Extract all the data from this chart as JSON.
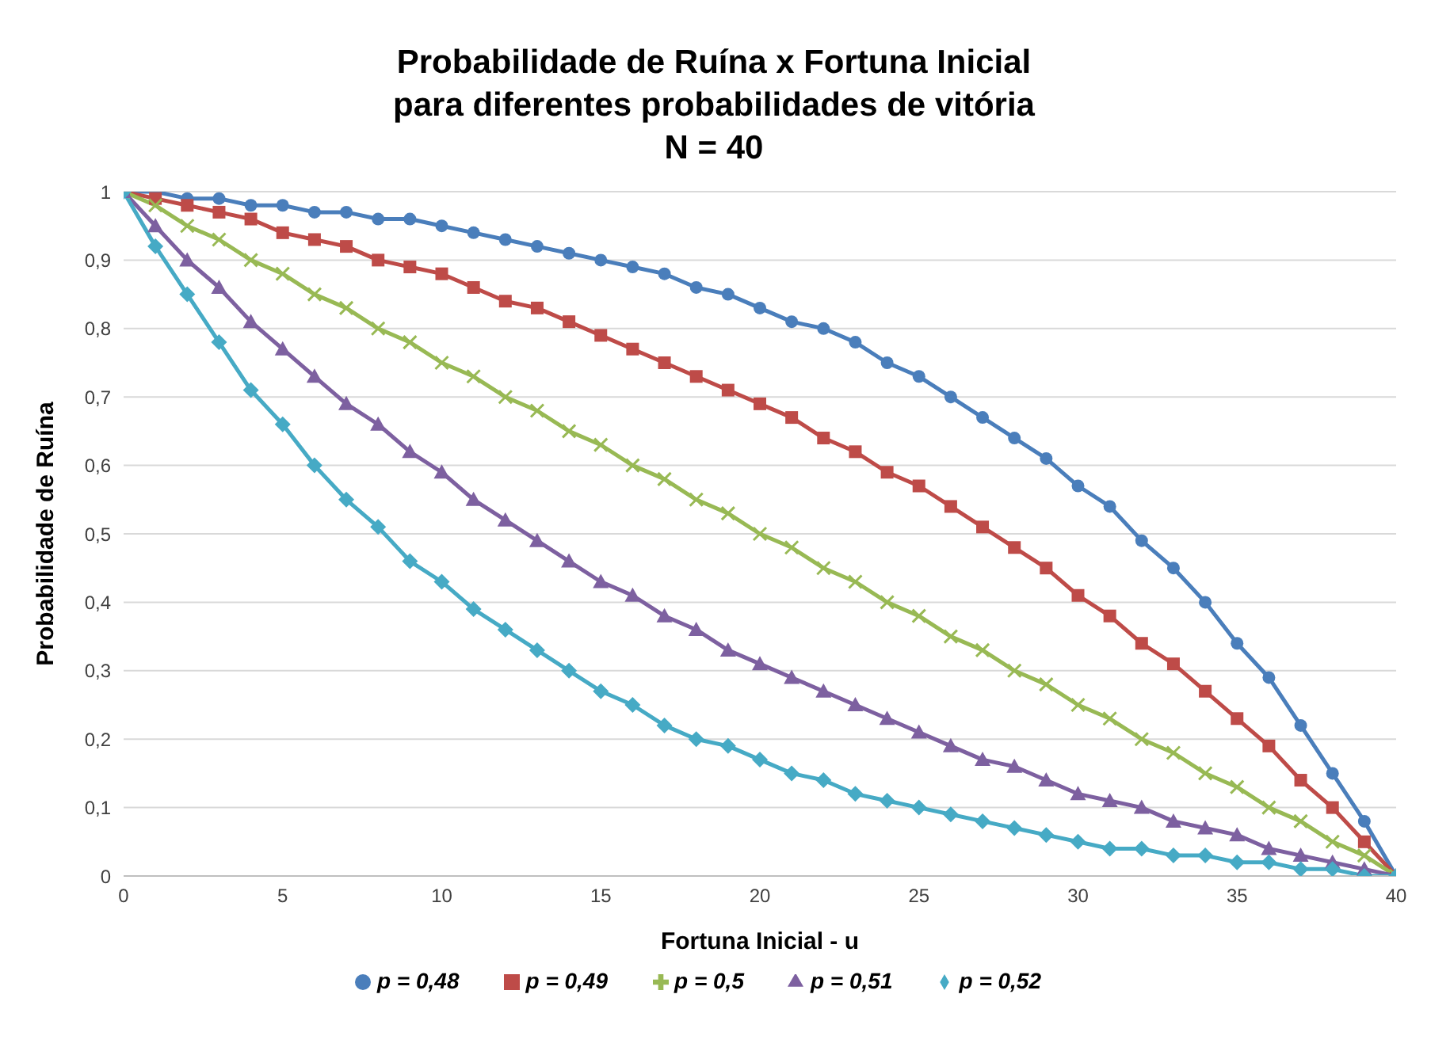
{
  "chart_data": {
    "type": "line",
    "title": "Probabilidade de Ruína x Fortuna Inicial\npara diferentes probabilidades de vitória\nN = 40",
    "xlabel": "Fortuna Inicial - u",
    "ylabel": "Probabilidade de Ruína",
    "x": [
      0,
      1,
      2,
      3,
      4,
      5,
      6,
      7,
      8,
      9,
      10,
      11,
      12,
      13,
      14,
      15,
      16,
      17,
      18,
      19,
      20,
      21,
      22,
      23,
      24,
      25,
      26,
      27,
      28,
      29,
      30,
      31,
      32,
      33,
      34,
      35,
      36,
      37,
      38,
      39,
      40
    ],
    "series": [
      {
        "name": "p = 0,48",
        "color": "#4a7ebb",
        "marker": "circle",
        "values": [
          1,
          1,
          0.99,
          0.99,
          0.98,
          0.98,
          0.97,
          0.97,
          0.96,
          0.96,
          0.95,
          0.94,
          0.93,
          0.92,
          0.91,
          0.9,
          0.89,
          0.88,
          0.86,
          0.85,
          0.83,
          0.81,
          0.8,
          0.78,
          0.75,
          0.73,
          0.7,
          0.67,
          0.64,
          0.61,
          0.57,
          0.54,
          0.49,
          0.45,
          0.4,
          0.34,
          0.29,
          0.22,
          0.15,
          0.08,
          0
        ]
      },
      {
        "name": "p = 0,49",
        "color": "#be4b48",
        "marker": "square",
        "values": [
          1,
          0.99,
          0.98,
          0.97,
          0.96,
          0.94,
          0.93,
          0.92,
          0.9,
          0.89,
          0.88,
          0.86,
          0.84,
          0.83,
          0.81,
          0.79,
          0.77,
          0.75,
          0.73,
          0.71,
          0.69,
          0.67,
          0.64,
          0.62,
          0.59,
          0.57,
          0.54,
          0.51,
          0.48,
          0.45,
          0.41,
          0.38,
          0.34,
          0.31,
          0.27,
          0.23,
          0.19,
          0.14,
          0.1,
          0.05,
          0
        ]
      },
      {
        "name": "p = 0,5",
        "color": "#98b954",
        "marker": "cross",
        "values": [
          1,
          0.98,
          0.95,
          0.93,
          0.9,
          0.88,
          0.85,
          0.83,
          0.8,
          0.78,
          0.75,
          0.73,
          0.7,
          0.68,
          0.65,
          0.63,
          0.6,
          0.58,
          0.55,
          0.53,
          0.5,
          0.48,
          0.45,
          0.43,
          0.4,
          0.38,
          0.35,
          0.33,
          0.3,
          0.28,
          0.25,
          0.23,
          0.2,
          0.18,
          0.15,
          0.13,
          0.1,
          0.08,
          0.05,
          0.03,
          0
        ]
      },
      {
        "name": "p = 0,51",
        "color": "#7d60a0",
        "marker": "triangle",
        "values": [
          1,
          0.95,
          0.9,
          0.86,
          0.81,
          0.77,
          0.73,
          0.69,
          0.66,
          0.62,
          0.59,
          0.55,
          0.52,
          0.49,
          0.46,
          0.43,
          0.41,
          0.38,
          0.36,
          0.33,
          0.31,
          0.29,
          0.27,
          0.25,
          0.23,
          0.21,
          0.19,
          0.17,
          0.16,
          0.14,
          0.12,
          0.11,
          0.1,
          0.08,
          0.07,
          0.06,
          0.04,
          0.03,
          0.02,
          0.01,
          0
        ]
      },
      {
        "name": "p = 0,52",
        "color": "#46aac5",
        "marker": "diamond",
        "values": [
          1,
          0.92,
          0.85,
          0.78,
          0.71,
          0.66,
          0.6,
          0.55,
          0.51,
          0.46,
          0.43,
          0.39,
          0.36,
          0.33,
          0.3,
          0.27,
          0.25,
          0.22,
          0.2,
          0.19,
          0.17,
          0.15,
          0.14,
          0.12,
          0.11,
          0.1,
          0.09,
          0.08,
          0.07,
          0.06,
          0.05,
          0.04,
          0.04,
          0.03,
          0.03,
          0.02,
          0.02,
          0.01,
          0.01,
          0,
          0
        ]
      }
    ],
    "xlim": [
      0,
      40
    ],
    "xticks": [
      0,
      5,
      10,
      15,
      20,
      25,
      30,
      35,
      40
    ],
    "ylim": [
      0,
      1
    ],
    "yticks": [
      0,
      {
        "value": 0.1,
        "label": "0,1"
      },
      {
        "value": 0.2,
        "label": "0,2"
      },
      {
        "value": 0.3,
        "label": "0,3"
      },
      {
        "value": 0.4,
        "label": "0,4"
      },
      {
        "value": 0.5,
        "label": "0,5"
      },
      {
        "value": 0.6,
        "label": "0,6"
      },
      {
        "value": 0.7,
        "label": "0,7"
      },
      {
        "value": 0.8,
        "label": "0,8"
      },
      {
        "value": 0.9,
        "label": "0,9"
      },
      1
    ],
    "grid": "y",
    "legend": "bottom",
    "line_style": "solid"
  }
}
